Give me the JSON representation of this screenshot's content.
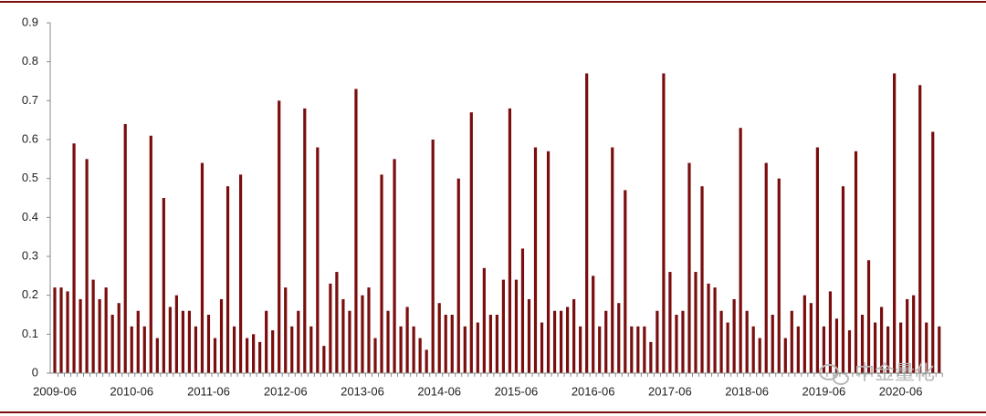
{
  "chart_data": {
    "type": "bar",
    "color": "#7a0d0d",
    "categories": [
      "2009-06",
      null,
      null,
      null,
      null,
      null,
      null,
      null,
      null,
      null,
      null,
      null,
      "2010-06",
      null,
      null,
      null,
      null,
      null,
      null,
      null,
      null,
      null,
      null,
      null,
      "2011-06",
      null,
      null,
      null,
      null,
      null,
      null,
      null,
      null,
      null,
      null,
      null,
      "2012-06",
      null,
      null,
      null,
      null,
      null,
      null,
      null,
      null,
      null,
      null,
      null,
      "2013-06",
      null,
      null,
      null,
      null,
      null,
      null,
      null,
      null,
      null,
      null,
      null,
      "2014-06",
      null,
      null,
      null,
      null,
      null,
      null,
      null,
      null,
      null,
      null,
      null,
      "2015-06",
      null,
      null,
      null,
      null,
      null,
      null,
      null,
      null,
      null,
      null,
      null,
      "2016-06",
      null,
      null,
      null,
      null,
      null,
      null,
      null,
      null,
      null,
      null,
      null,
      "2017-06",
      null,
      null,
      null,
      null,
      null,
      null,
      null,
      null,
      null,
      null,
      null,
      "2018-06",
      null,
      null,
      null,
      null,
      null,
      null,
      null,
      null,
      null,
      null,
      null,
      "2019-06",
      null,
      null,
      null,
      null,
      null,
      null,
      null,
      null,
      null,
      null,
      null,
      "2020-06",
      null,
      null,
      null,
      null,
      null,
      null
    ],
    "values": [
      0.22,
      0.22,
      0.21,
      0.59,
      0.19,
      0.55,
      0.24,
      0.19,
      0.22,
      0.15,
      0.18,
      0.64,
      0.12,
      0.16,
      0.12,
      0.61,
      0.09,
      0.45,
      0.17,
      0.2,
      0.16,
      0.16,
      0.12,
      0.54,
      0.15,
      0.09,
      0.19,
      0.48,
      0.12,
      0.51,
      0.09,
      0.1,
      0.08,
      0.16,
      0.11,
      0.7,
      0.22,
      0.12,
      0.16,
      0.68,
      0.12,
      0.58,
      0.07,
      0.23,
      0.26,
      0.19,
      0.16,
      0.73,
      0.2,
      0.22,
      0.09,
      0.51,
      0.16,
      0.55,
      0.12,
      0.17,
      0.12,
      0.09,
      0.06,
      0.6,
      0.18,
      0.15,
      0.15,
      0.5,
      0.12,
      0.67,
      0.13,
      0.27,
      0.15,
      0.15,
      0.24,
      0.68,
      0.24,
      0.32,
      0.19,
      0.58,
      0.13,
      0.57,
      0.16,
      0.16,
      0.17,
      0.19,
      0.12,
      0.77,
      0.25,
      0.12,
      0.16,
      0.58,
      0.18,
      0.47,
      0.12,
      0.12,
      0.12,
      0.08,
      0.16,
      0.77,
      0.26,
      0.15,
      0.16,
      0.54,
      0.26,
      0.48,
      0.23,
      0.22,
      0.16,
      0.13,
      0.19,
      0.63,
      0.16,
      0.12,
      0.09,
      0.54,
      0.15,
      0.5,
      0.09,
      0.16,
      0.12,
      0.2,
      0.18,
      0.58,
      0.12,
      0.21,
      0.14,
      0.48,
      0.11,
      0.57,
      0.15,
      0.29,
      0.13,
      0.17,
      0.12,
      0.77,
      0.13,
      0.19,
      0.2,
      0.74,
      0.13,
      0.62,
      0.12
    ],
    "ylim": [
      0,
      0.9
    ],
    "yticks": [
      0,
      0.1,
      0.2,
      0.3,
      0.4,
      0.5,
      0.6,
      0.7,
      0.8,
      0.9
    ]
  },
  "watermark": "中金量化"
}
